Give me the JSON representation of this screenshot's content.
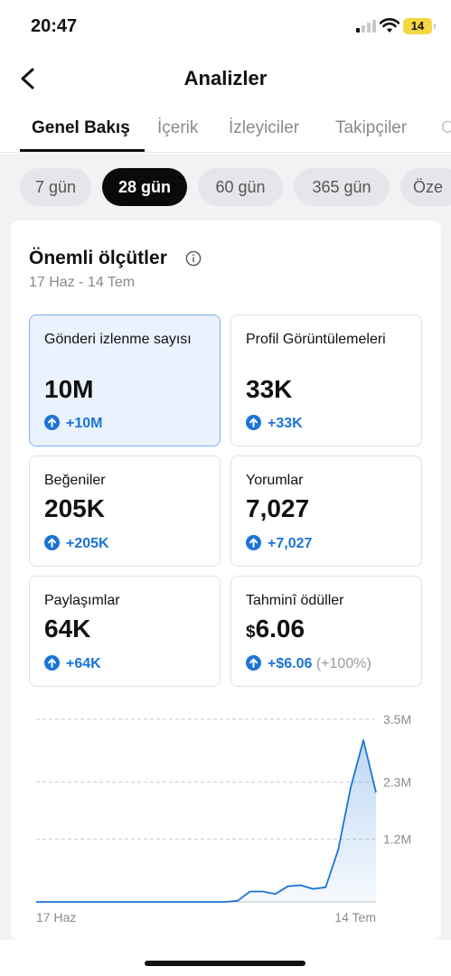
{
  "status_bar": {
    "time": "20:47",
    "battery": "14"
  },
  "header": {
    "title": "Analizler"
  },
  "tabs": [
    {
      "label": "Genel Bakış",
      "active": true
    },
    {
      "label": "İçerik"
    },
    {
      "label": "İzleyiciler"
    },
    {
      "label": "Takipçiler"
    },
    {
      "label": "C"
    }
  ],
  "ranges": [
    {
      "label": "7 gün"
    },
    {
      "label": "28 gün",
      "active": true
    },
    {
      "label": "60 gün"
    },
    {
      "label": "365 gün"
    },
    {
      "label": "Öze"
    }
  ],
  "key_metrics": {
    "title": "Önemli ölçütler",
    "date_range": "17 Haz - 14 Tem",
    "items": [
      {
        "label": "Gönderi izlenme sayısı",
        "value": "10M",
        "delta": "+10M",
        "selected": true
      },
      {
        "label": "Profil Görüntülemeleri",
        "value": "33K",
        "delta": "+33K"
      },
      {
        "label": "Beğeniler",
        "value": "205K",
        "delta": "+205K"
      },
      {
        "label": "Yorumlar",
        "value": "7,027",
        "delta": "+7,027"
      },
      {
        "label": "Paylaşımlar",
        "value": "64K",
        "delta": "+64K"
      },
      {
        "label": "Tahminî ödüller",
        "currency": "$",
        "value": "6.06",
        "delta": "+$6.06",
        "delta_note": "(+100%)"
      }
    ]
  },
  "chart_data": {
    "type": "area",
    "x_labels": [
      "17 Haz",
      "14 Tem"
    ],
    "y_ticks": [
      "3.5M",
      "2.3M",
      "1.2M"
    ],
    "ylim": [
      0,
      3.5
    ],
    "grid": true,
    "color": "#1b74d6",
    "x": [
      0,
      1,
      2,
      3,
      4,
      5,
      6,
      7,
      8,
      9,
      10,
      11,
      12,
      13,
      14,
      15,
      16,
      17,
      18,
      19,
      20,
      21,
      22,
      23,
      24,
      25,
      26,
      27
    ],
    "values": [
      0,
      0,
      0,
      0,
      0,
      0,
      0,
      0,
      0,
      0,
      0,
      0,
      0,
      0,
      0,
      0,
      0.02,
      0.2,
      0.2,
      0.15,
      0.3,
      0.32,
      0.25,
      0.28,
      1.0,
      2.2,
      3.1,
      2.1
    ]
  }
}
